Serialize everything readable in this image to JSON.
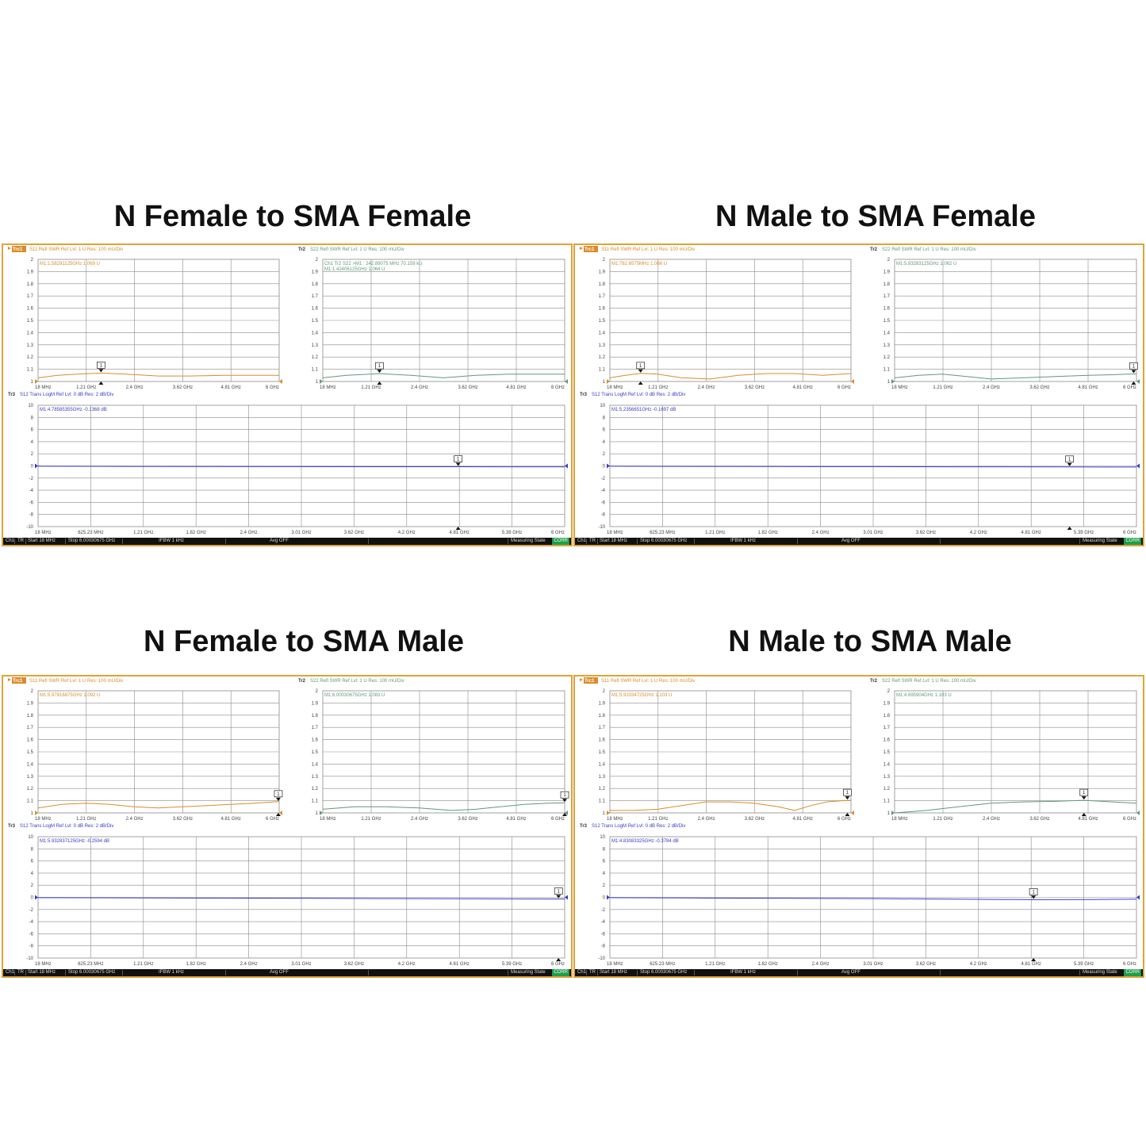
{
  "colors": {
    "s11": "#d98c2a",
    "s22": "#5f9a78",
    "s12": "#3a3ac8",
    "frame": "#e0a33a",
    "grid": "#8a8a8a",
    "bar": "#111111",
    "corr": "#1d9e4a"
  },
  "status_bar": {
    "ch": "Ch1",
    "tr": "TR",
    "start": "Start 18 MHz",
    "stop": "Stop 6.00030675 GHz",
    "ifbw": "IFBW 1 kHz",
    "avg": "Avg OFF",
    "state": "Measuring State",
    "corr": "CORR"
  },
  "panels": [
    {
      "heading": "N Female to SMA Female",
      "tr1": {
        "tag": "Trc1",
        "header": "S11 Refl SWR Ref Lvl: 1  U Res: 100 mU/Div",
        "marker": "M1:1.58291125GHz  1.069  U",
        "marker2": "",
        "marker_label": "1"
      },
      "tr2": {
        "tag": "Tr2",
        "header": "S22 Refl SWR Ref Lvl: 1  U Res: 100 mU/Div",
        "marker": "Ch1 Tr2  S22 >M1 :  242.89075 MHz 70.159 kU",
        "marker2": "M1:1.42406125GHz  1.064  U",
        "marker_label": "1"
      },
      "tr3": {
        "tag": "Tr3",
        "header": "S12 Trans LogM Ref Lvl: 0  dB Res: 2  dB/Div",
        "marker": "M1:4.78585355GHz  -0.1368  dB",
        "marker_label": "1"
      }
    },
    {
      "heading": "N Male to SMA Female",
      "tr1": {
        "tag": "Trc1",
        "header": "S11 Refl SWR Ref Lvl: 1  U Res: 100 mU/Div",
        "marker": "M1:782.6575MHz  1.066  U",
        "marker2": "",
        "marker_label": "1"
      },
      "tr2": {
        "tag": "Tr2",
        "header": "S22 Refl SWR Ref Lvl: 1  U Res: 100 mU/Div",
        "marker": "M1:5.93283125GHz  1.062  U",
        "marker2": "",
        "marker_label": "1"
      },
      "tr3": {
        "tag": "Tr3",
        "header": "S12 Trans LogM Ref Lvl: 0  dB Res: 2  dB/Div",
        "marker": "M1:5.2356651GHz  -0.1697  dB",
        "marker_label": "1"
      }
    },
    {
      "heading": "N Female to SMA Male",
      "tr1": {
        "tag": "Trc1",
        "header": "S11 Refl SWR Ref Lvl: 1  U Res: 100 mU/Div",
        "marker": "M1:5.97916875GHz  1.092  U",
        "marker2": "",
        "marker_label": "1"
      },
      "tr2": {
        "tag": "Tr2",
        "header": "S22 Refl SWR Ref Lvl: 1  U Res: 100 mU/Div",
        "marker": "M1:6.00030675GHz  1.083  U",
        "marker2": "",
        "marker_label": "1"
      },
      "tr3": {
        "tag": "Tr3",
        "header": "S12 Trans LogM Ref Lvl: 0  dB Res: 2  dB/Div",
        "marker": "M1:5.932837125GHz  -0.2594  dB",
        "marker_label": "1"
      }
    },
    {
      "heading": "N Male to SMA Male",
      "tr1": {
        "tag": "Trc1",
        "header": "S11 Refl SWR Ref Lvl: 1  U Res: 100 mU/Div",
        "marker": "M1:5.91034725GHz  1.103  U",
        "marker2": "",
        "marker_label": "1"
      },
      "tr2": {
        "tag": "Tr2",
        "header": "S22 Refl SWR Ref Lvl: 1  U Res: 100 mU/Div",
        "marker": "M1:4.695904GHz  1.103  U",
        "marker2": "",
        "marker_label": "1"
      },
      "tr3": {
        "tag": "Tr3",
        "header": "S12 Trans LogM Ref Lvl: 0  dB Res: 2  dB/Div",
        "marker": "M1:4.83083325GHz  -0.3784  dB",
        "marker_label": "1"
      }
    }
  ],
  "chart_data": [
    {
      "panel": 0,
      "type": "line",
      "name": "S11",
      "ylim": [
        1,
        2
      ],
      "yticks": [
        "2",
        "1.9",
        "1.8",
        "1.7",
        "1.6",
        "1.5",
        "1.4",
        "1.3",
        "1.2",
        "1.1",
        "1"
      ],
      "xticks": [
        "18 MHz",
        "1.21 GHz",
        "2.4 GHz",
        "3.62 GHz",
        "4.81 GHz",
        "6 GHz"
      ],
      "xlim_ghz": [
        0.018,
        6.0
      ],
      "x": [
        0.018,
        0.5,
        1.0,
        1.58,
        2.2,
        3.0,
        3.8,
        4.6,
        5.4,
        6.0
      ],
      "y": [
        1.03,
        1.05,
        1.06,
        1.069,
        1.06,
        1.045,
        1.045,
        1.05,
        1.05,
        1.05
      ],
      "marker": {
        "x": 1.58,
        "label": "1"
      }
    },
    {
      "panel": 0,
      "type": "line",
      "name": "S22",
      "ylim": [
        1,
        2
      ],
      "yticks": [
        "2",
        "1.9",
        "1.8",
        "1.7",
        "1.6",
        "1.5",
        "1.4",
        "1.3",
        "1.2",
        "1.1",
        "1"
      ],
      "xticks": [
        "18 MHz",
        "1.21 GHz",
        "2.4 GHz",
        "3.62 GHz",
        "4.81 GHz",
        "6 GHz"
      ],
      "xlim_ghz": [
        0.018,
        6.0
      ],
      "x": [
        0.018,
        0.6,
        1.42,
        2.2,
        3.0,
        3.8,
        4.6,
        5.4,
        6.0
      ],
      "y": [
        1.03,
        1.05,
        1.064,
        1.05,
        1.03,
        1.05,
        1.06,
        1.06,
        1.06
      ],
      "marker": {
        "x": 1.42,
        "label": "1"
      }
    },
    {
      "panel": 0,
      "type": "line",
      "name": "S12",
      "ylim": [
        -10,
        10
      ],
      "yticks": [
        "10",
        "8",
        "6",
        "4",
        "2",
        "0",
        "-2",
        "-4",
        "-6",
        "-8",
        "-10"
      ],
      "xticks": [
        "18 MHz",
        "625.23 MHz",
        "1.21 GHz",
        "1.82 GHz",
        "2.4 GHz",
        "3.01 GHz",
        "3.62 GHz",
        "4.2 GHz",
        "4.81 GHz",
        "5.39 GHz",
        "6 GHz"
      ],
      "xlim_ghz": [
        0.018,
        6.0
      ],
      "x": [
        0.018,
        1.0,
        2.0,
        3.0,
        4.0,
        4.79,
        5.5,
        6.0
      ],
      "y": [
        -0.05,
        -0.08,
        -0.1,
        -0.12,
        -0.13,
        -0.1368,
        -0.14,
        -0.15
      ],
      "marker": {
        "x": 4.79,
        "label": "1"
      }
    },
    {
      "panel": 1,
      "type": "line",
      "name": "S11",
      "ylim": [
        1,
        2
      ],
      "yticks": [
        "2",
        "1.9",
        "1.8",
        "1.7",
        "1.6",
        "1.5",
        "1.4",
        "1.3",
        "1.2",
        "1.1",
        "1"
      ],
      "xticks": [
        "18 MHz",
        "1.21 GHz",
        "2.4 GHz",
        "3.62 GHz",
        "4.81 GHz",
        "6 GHz"
      ],
      "xlim_ghz": [
        0.018,
        6.0
      ],
      "x": [
        0.018,
        0.4,
        0.78,
        1.2,
        1.8,
        2.5,
        3.2,
        3.9,
        4.6,
        5.3,
        6.0
      ],
      "y": [
        1.03,
        1.05,
        1.066,
        1.06,
        1.03,
        1.02,
        1.05,
        1.065,
        1.065,
        1.05,
        1.065
      ],
      "marker": {
        "x": 0.78,
        "label": "1"
      }
    },
    {
      "panel": 1,
      "type": "line",
      "name": "S22",
      "ylim": [
        1,
        2
      ],
      "yticks": [
        "2",
        "1.9",
        "1.8",
        "1.7",
        "1.6",
        "1.5",
        "1.4",
        "1.3",
        "1.2",
        "1.1",
        "1"
      ],
      "xticks": [
        "18 MHz",
        "1.21 GHz",
        "2.4 GHz",
        "3.62 GHz",
        "4.81 GHz",
        "6 GHz"
      ],
      "xlim_ghz": [
        0.018,
        6.0
      ],
      "x": [
        0.018,
        0.6,
        1.2,
        1.8,
        2.4,
        3.2,
        4.0,
        4.8,
        5.4,
        5.93,
        6.0
      ],
      "y": [
        1.03,
        1.05,
        1.06,
        1.04,
        1.02,
        1.03,
        1.04,
        1.05,
        1.055,
        1.062,
        1.062
      ],
      "marker": {
        "x": 5.93,
        "label": "1"
      }
    },
    {
      "panel": 1,
      "type": "line",
      "name": "S12",
      "ylim": [
        -10,
        10
      ],
      "yticks": [
        "10",
        "8",
        "6",
        "4",
        "2",
        "0",
        "-2",
        "-4",
        "-6",
        "-8",
        "-10"
      ],
      "xticks": [
        "18 MHz",
        "625.23 MHz",
        "1.21 GHz",
        "1.82 GHz",
        "2.4 GHz",
        "3.01 GHz",
        "3.62 GHz",
        "4.2 GHz",
        "4.81 GHz",
        "5.39 GHz",
        "6 GHz"
      ],
      "xlim_ghz": [
        0.018,
        6.0
      ],
      "x": [
        0.018,
        1.0,
        2.0,
        3.0,
        4.0,
        5.24,
        6.0
      ],
      "y": [
        -0.05,
        -0.08,
        -0.1,
        -0.12,
        -0.14,
        -0.1697,
        -0.18
      ],
      "marker": {
        "x": 5.24,
        "label": "1"
      }
    },
    {
      "panel": 2,
      "type": "line",
      "name": "S11",
      "ylim": [
        1,
        2
      ],
      "yticks": [
        "2",
        "1.9",
        "1.8",
        "1.7",
        "1.6",
        "1.5",
        "1.4",
        "1.3",
        "1.2",
        "1.1",
        "1"
      ],
      "xticks": [
        "18 MHz",
        "1.21 GHz",
        "2.4 GHz",
        "3.62 GHz",
        "4.81 GHz",
        "6 GHz"
      ],
      "xlim_ghz": [
        0.018,
        6.0
      ],
      "x": [
        0.018,
        0.6,
        1.2,
        1.8,
        2.4,
        3.0,
        3.6,
        4.2,
        4.8,
        5.4,
        5.98,
        6.0
      ],
      "y": [
        1.04,
        1.07,
        1.08,
        1.07,
        1.05,
        1.04,
        1.05,
        1.06,
        1.07,
        1.08,
        1.092,
        1.092
      ],
      "marker": {
        "x": 5.98,
        "label": "1"
      }
    },
    {
      "panel": 2,
      "type": "line",
      "name": "S22",
      "ylim": [
        1,
        2
      ],
      "yticks": [
        "2",
        "1.9",
        "1.8",
        "1.7",
        "1.6",
        "1.5",
        "1.4",
        "1.3",
        "1.2",
        "1.1",
        "1"
      ],
      "xticks": [
        "18 MHz",
        "1.21 GHz",
        "2.4 GHz",
        "3.62 GHz",
        "4.81 GHz",
        "6 GHz"
      ],
      "xlim_ghz": [
        0.018,
        6.0
      ],
      "x": [
        0.018,
        0.8,
        1.6,
        2.4,
        3.2,
        3.8,
        4.4,
        5.0,
        5.6,
        6.0
      ],
      "y": [
        1.03,
        1.05,
        1.05,
        1.04,
        1.02,
        1.03,
        1.05,
        1.07,
        1.08,
        1.083
      ],
      "marker": {
        "x": 6.0,
        "label": "1"
      }
    },
    {
      "panel": 2,
      "type": "line",
      "name": "S12",
      "ylim": [
        -10,
        10
      ],
      "yticks": [
        "10",
        "8",
        "6",
        "4",
        "2",
        "0",
        "-2",
        "-4",
        "-6",
        "-8",
        "-10"
      ],
      "xticks": [
        "18 MHz",
        "625.23 MHz",
        "1.21 GHz",
        "1.82 GHz",
        "2.4 GHz",
        "3.01 GHz",
        "3.62 GHz",
        "4.2 GHz",
        "4.81 GHz",
        "5.39 GHz",
        "6 GHz"
      ],
      "xlim_ghz": [
        0.018,
        6.0
      ],
      "x": [
        0.018,
        1.0,
        2.0,
        3.0,
        4.0,
        5.0,
        5.93,
        6.0
      ],
      "y": [
        -0.05,
        -0.08,
        -0.12,
        -0.15,
        -0.2,
        -0.23,
        -0.2594,
        -0.26
      ],
      "marker": {
        "x": 5.93,
        "label": "1"
      }
    },
    {
      "panel": 3,
      "type": "line",
      "name": "S11",
      "ylim": [
        1,
        2
      ],
      "yticks": [
        "2",
        "1.9",
        "1.8",
        "1.7",
        "1.6",
        "1.5",
        "1.4",
        "1.3",
        "1.2",
        "1.1",
        "1"
      ],
      "xticks": [
        "18 MHz",
        "1.21 GHz",
        "2.4 GHz",
        "3.62 GHz",
        "4.81 GHz",
        "6 GHz"
      ],
      "xlim_ghz": [
        0.018,
        6.0
      ],
      "x": [
        0.018,
        0.6,
        1.2,
        1.8,
        2.4,
        3.0,
        3.6,
        4.2,
        4.6,
        5.0,
        5.4,
        5.91,
        6.0
      ],
      "y": [
        1.02,
        1.02,
        1.03,
        1.06,
        1.09,
        1.09,
        1.08,
        1.05,
        1.02,
        1.06,
        1.09,
        1.103,
        1.103
      ],
      "marker": {
        "x": 5.91,
        "label": "1"
      }
    },
    {
      "panel": 3,
      "type": "line",
      "name": "S22",
      "ylim": [
        1,
        2
      ],
      "yticks": [
        "2",
        "1.9",
        "1.8",
        "1.7",
        "1.6",
        "1.5",
        "1.4",
        "1.3",
        "1.2",
        "1.1",
        "1"
      ],
      "xticks": [
        "18 MHz",
        "1.21 GHz",
        "2.4 GHz",
        "3.62 GHz",
        "4.81 GHz",
        "6 GHz"
      ],
      "xlim_ghz": [
        0.018,
        6.0
      ],
      "x": [
        0.018,
        0.8,
        1.6,
        2.4,
        3.2,
        4.0,
        4.7,
        5.4,
        6.0
      ],
      "y": [
        1.0,
        1.02,
        1.05,
        1.08,
        1.09,
        1.095,
        1.103,
        1.09,
        1.08
      ],
      "marker": {
        "x": 4.7,
        "label": "1"
      }
    },
    {
      "panel": 3,
      "type": "line",
      "name": "S12",
      "ylim": [
        -10,
        10
      ],
      "yticks": [
        "10",
        "8",
        "6",
        "4",
        "2",
        "0",
        "-2",
        "-4",
        "-6",
        "-8",
        "-10"
      ],
      "xticks": [
        "18 MHz",
        "625.23 MHz",
        "1.21 GHz",
        "1.82 GHz",
        "2.4 GHz",
        "3.01 GHz",
        "3.62 GHz",
        "4.2 GHz",
        "4.81 GHz",
        "5.39 GHz",
        "6 GHz"
      ],
      "xlim_ghz": [
        0.018,
        6.0
      ],
      "x": [
        0.018,
        1.0,
        2.0,
        3.0,
        4.0,
        4.83,
        5.5,
        6.0
      ],
      "y": [
        -0.05,
        -0.1,
        -0.15,
        -0.2,
        -0.3,
        -0.3784,
        -0.35,
        -0.3
      ],
      "marker": {
        "x": 4.83,
        "label": "1"
      }
    }
  ]
}
